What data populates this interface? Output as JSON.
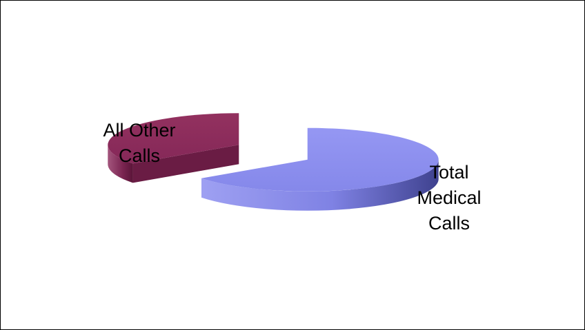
{
  "chart_data": {
    "type": "pie",
    "three_d": true,
    "exploded": true,
    "legend": "none",
    "title": "",
    "slices": [
      {
        "label_lines": [
          "Total",
          "Medical",
          "Calls"
        ],
        "value": 0.65,
        "color": "#8f91ef",
        "side_color": "#5c5fc4"
      },
      {
        "label_lines": [
          "All Other",
          "Calls"
        ],
        "value": 0.35,
        "color": "#8e2c5c",
        "side_color": "#6a1c44"
      }
    ]
  }
}
